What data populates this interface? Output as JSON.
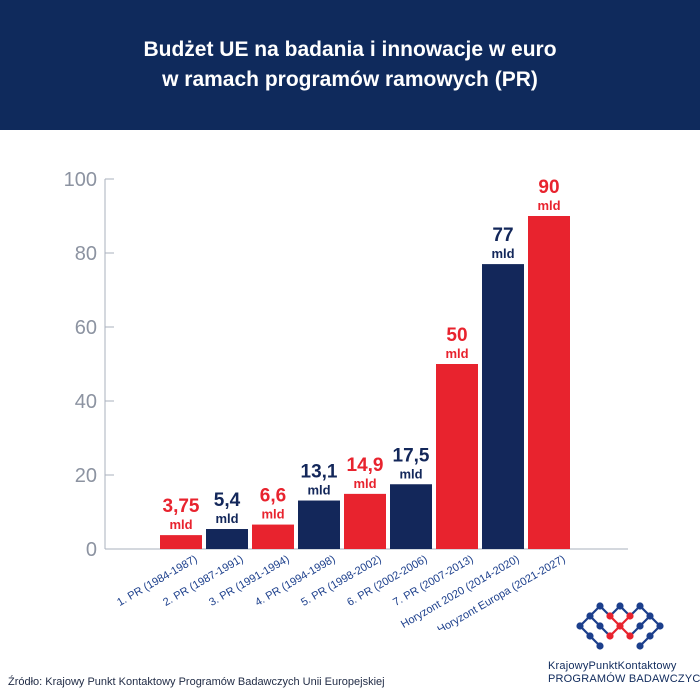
{
  "header": {
    "title_line1": "Budżet UE na badania i innowacje w euro",
    "title_line2": "w ramach programów ramowych (PR)"
  },
  "colors": {
    "header_bg": "#0f2a5c",
    "red": "#e8232e",
    "navy": "#13275a",
    "axis": "#aab0bd",
    "tick_text": "#8c93a1"
  },
  "chart_data": {
    "type": "bar",
    "title": "Budżet UE na badania i innowacje w euro w ramach programów ramowych (PR)",
    "categories": [
      "1. PR (1984-1987)",
      "2. PR (1987-1991)",
      "3. PR (1991-1994)",
      "4. PR (1994-1998)",
      "5. PR (1998-2002)",
      "6. PR (2002-2006)",
      "7. PR (2007-2013)",
      "Horyzont 2020 (2014-2020)",
      "Horyzont Europa (2021-2027)"
    ],
    "values": [
      3.75,
      5.4,
      6.6,
      13.1,
      14.9,
      17.5,
      50,
      77,
      90
    ],
    "value_labels": [
      "3,75",
      "5,4",
      "6,6",
      "13,1",
      "14,9",
      "17,5",
      "50",
      "77",
      "90"
    ],
    "unit_label": "mld",
    "bar_colors": [
      "red",
      "navy",
      "red",
      "navy",
      "red",
      "navy",
      "red",
      "navy",
      "red"
    ],
    "ylim": [
      0,
      100
    ],
    "yticks": [
      0,
      20,
      40,
      60,
      80,
      100
    ],
    "grid": false,
    "legend": "none"
  },
  "source": "Źródło: Krajowy Punkt Kontaktowy Programów Badawczych Unii Europejskiej",
  "logo": {
    "line1": "KrajowyPunktKontaktowy",
    "line2": "PROGRAMÓW BADAWCZYCH UE"
  }
}
